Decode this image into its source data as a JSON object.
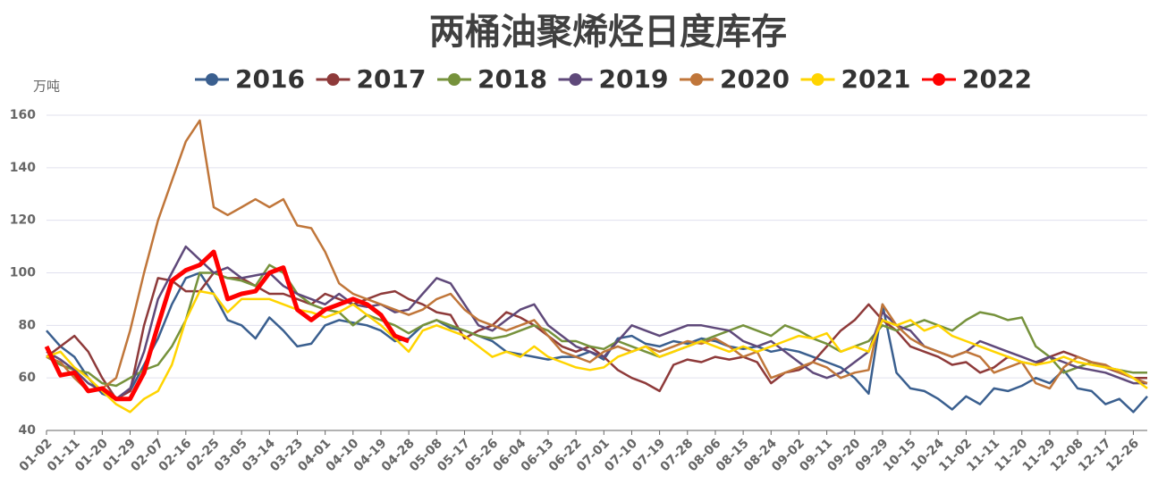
{
  "chart_data": {
    "type": "line",
    "title": "两桶油聚烯烃日度库存",
    "y_label": "万吨",
    "categories": [
      "01-02",
      null,
      "01-11",
      null,
      "01-20",
      null,
      "01-29",
      null,
      "02-07",
      null,
      "02-16",
      null,
      "02-25",
      null,
      "03-05",
      null,
      "03-14",
      null,
      "03-23",
      null,
      "04-01",
      null,
      "04-10",
      null,
      "04-19",
      null,
      "04-28",
      null,
      "05-08",
      null,
      "05-17",
      null,
      "05-26",
      null,
      "06-04",
      null,
      "06-13",
      null,
      "06-22",
      null,
      "07-01",
      null,
      "07-10",
      null,
      "07-19",
      null,
      "07-28",
      null,
      "08-06",
      null,
      "08-15",
      null,
      "08-24",
      null,
      "09-02",
      null,
      "09-11",
      null,
      "09-20",
      null,
      "09-29",
      null,
      "10-15",
      null,
      "10-24",
      null,
      "11-02",
      null,
      "11-11",
      null,
      "11-20",
      null,
      "11-29",
      null,
      "12-08",
      null,
      "12-17",
      null,
      "12-26",
      null
    ],
    "ylim": [
      40,
      160
    ],
    "yticks": [
      40,
      60,
      80,
      100,
      120,
      140,
      160
    ],
    "grid": true,
    "series": [
      {
        "name": "2016",
        "color": "#3a5f8f",
        "values": [
          78,
          72,
          68,
          60,
          54,
          52,
          55,
          65,
          75,
          88,
          98,
          100,
          92,
          82,
          80,
          75,
          83,
          78,
          72,
          73,
          80,
          82,
          81,
          80,
          78,
          74,
          75,
          80,
          82,
          79,
          78,
          76,
          74,
          70,
          69,
          68,
          67,
          68,
          68,
          70,
          67,
          75,
          76,
          73,
          72,
          74,
          73,
          75,
          74,
          72,
          71,
          72,
          70,
          71,
          70,
          68,
          66,
          64,
          60,
          54,
          88,
          62,
          56,
          55,
          52,
          48,
          53,
          50,
          56,
          55,
          57,
          60,
          58,
          63,
          56,
          55,
          50,
          52,
          47,
          53
        ]
      },
      {
        "name": "2017",
        "color": "#8e3a3a",
        "values": [
          68,
          72,
          76,
          70,
          60,
          52,
          55,
          80,
          98,
          97,
          93,
          93,
          100,
          98,
          98,
          95,
          92,
          92,
          90,
          88,
          92,
          90,
          88,
          90,
          92,
          93,
          90,
          88,
          85,
          84,
          75,
          78,
          80,
          85,
          83,
          80,
          76,
          72,
          70,
          72,
          68,
          63,
          60,
          58,
          55,
          65,
          67,
          66,
          68,
          67,
          68,
          66,
          58,
          62,
          63,
          66,
          72,
          78,
          82,
          88,
          82,
          78,
          72,
          70,
          68,
          65,
          66,
          62,
          64,
          68,
          66,
          65,
          68,
          70,
          68,
          66,
          64,
          62,
          60,
          60
        ]
      },
      {
        "name": "2018",
        "color": "#76923c",
        "values": [
          68,
          65,
          63,
          62,
          58,
          57,
          60,
          63,
          65,
          72,
          82,
          100,
          100,
          98,
          97,
          95,
          103,
          100,
          92,
          88,
          86,
          85,
          80,
          84,
          82,
          80,
          77,
          80,
          82,
          80,
          78,
          76,
          75,
          76,
          78,
          80,
          78,
          74,
          74,
          72,
          71,
          74,
          72,
          70,
          68,
          70,
          72,
          74,
          76,
          78,
          80,
          78,
          76,
          80,
          78,
          75,
          73,
          70,
          72,
          74,
          80,
          78,
          80,
          82,
          80,
          78,
          82,
          85,
          84,
          82,
          83,
          72,
          68,
          62,
          64,
          66,
          64,
          63,
          62,
          62
        ]
      },
      {
        "name": "2019",
        "color": "#5f497a",
        "values": [
          70,
          67,
          63,
          58,
          55,
          52,
          56,
          70,
          90,
          100,
          110,
          105,
          100,
          102,
          98,
          99,
          100,
          95,
          92,
          90,
          88,
          92,
          88,
          87,
          88,
          85,
          86,
          92,
          98,
          96,
          88,
          80,
          78,
          82,
          86,
          88,
          80,
          76,
          72,
          70,
          68,
          74,
          80,
          78,
          76,
          78,
          80,
          80,
          79,
          78,
          74,
          72,
          74,
          70,
          66,
          62,
          60,
          62,
          66,
          70,
          85,
          80,
          78,
          72,
          70,
          68,
          70,
          74,
          72,
          70,
          68,
          66,
          68,
          66,
          64,
          63,
          62,
          60,
          58,
          58
        ]
      },
      {
        "name": "2020",
        "color": "#c0763a",
        "values": [
          68,
          66,
          60,
          55,
          56,
          60,
          78,
          100,
          120,
          135,
          150,
          158,
          125,
          122,
          125,
          128,
          125,
          128,
          118,
          117,
          108,
          96,
          92,
          90,
          88,
          86,
          84,
          86,
          90,
          92,
          86,
          82,
          80,
          78,
          80,
          82,
          76,
          70,
          68,
          66,
          70,
          72,
          70,
          72,
          70,
          72,
          74,
          73,
          75,
          72,
          68,
          70,
          60,
          62,
          64,
          66,
          64,
          60,
          62,
          63,
          88,
          80,
          75,
          72,
          70,
          68,
          70,
          68,
          62,
          64,
          66,
          58,
          56,
          64,
          68,
          66,
          65,
          62,
          60,
          58
        ]
      },
      {
        "name": "2021",
        "color": "#ffd400",
        "values": [
          68,
          70,
          64,
          60,
          55,
          50,
          47,
          52,
          55,
          65,
          82,
          93,
          92,
          85,
          90,
          90,
          90,
          88,
          86,
          85,
          83,
          85,
          88,
          84,
          80,
          75,
          70,
          78,
          80,
          78,
          76,
          72,
          68,
          70,
          68,
          72,
          68,
          66,
          64,
          63,
          64,
          68,
          70,
          72,
          68,
          70,
          72,
          74,
          72,
          70,
          72,
          70,
          72,
          74,
          76,
          75,
          77,
          70,
          72,
          70,
          82,
          80,
          82,
          78,
          80,
          76,
          74,
          72,
          70,
          68,
          66,
          65,
          66,
          68,
          66,
          65,
          64,
          63,
          60,
          56
        ]
      },
      {
        "name": "2022",
        "color": "#ff0000",
        "values": [
          72,
          61,
          62,
          55,
          56,
          52,
          52,
          62,
          80,
          97,
          101,
          103,
          108,
          90,
          92,
          93,
          100,
          102,
          86,
          82,
          86,
          88,
          90,
          88,
          84,
          76,
          74,
          null,
          null,
          null,
          null,
          null,
          null,
          null,
          null,
          null,
          null,
          null,
          null,
          null,
          null,
          null,
          null,
          null,
          null,
          null,
          null,
          null,
          null,
          null,
          null,
          null,
          null,
          null,
          null,
          null,
          null,
          null,
          null,
          null,
          null,
          null,
          null,
          null,
          null,
          null,
          null,
          null,
          null,
          null,
          null,
          null,
          null,
          null,
          null,
          null,
          null,
          null,
          null,
          null
        ]
      }
    ]
  }
}
